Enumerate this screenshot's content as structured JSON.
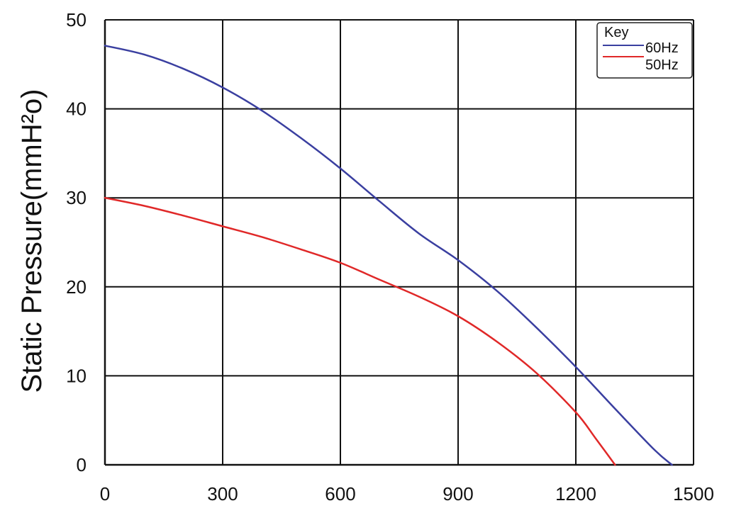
{
  "chart_data": {
    "type": "line",
    "title": "",
    "xlabel": "",
    "ylabel": "Static Pressure(mmH²o)",
    "xlim": [
      0,
      1500
    ],
    "ylim": [
      0,
      50
    ],
    "x_ticks": [
      "0",
      "300",
      "600",
      "900",
      "1200",
      "1500"
    ],
    "y_ticks": [
      "0",
      "10",
      "20",
      "30",
      "40",
      "50"
    ],
    "grid": true,
    "legend": {
      "title": "Key",
      "placement": "top-right",
      "entries": [
        "60Hz",
        "50Hz"
      ]
    },
    "series": [
      {
        "name": "60Hz",
        "color": "#3a3fa0",
        "x": [
          0,
          100,
          200,
          300,
          400,
          500,
          600,
          700,
          800,
          900,
          1000,
          1100,
          1200,
          1300,
          1400,
          1445
        ],
        "y": [
          47.1,
          46.1,
          44.5,
          42.4,
          39.8,
          36.7,
          33.3,
          29.6,
          26.0,
          23.0,
          19.5,
          15.4,
          11.0,
          6.3,
          1.7,
          0
        ]
      },
      {
        "name": "50Hz",
        "color": "#e02828",
        "x": [
          0,
          100,
          200,
          300,
          400,
          500,
          600,
          700,
          800,
          900,
          1000,
          1100,
          1200,
          1250,
          1300
        ],
        "y": [
          30.0,
          29.1,
          28.0,
          26.8,
          25.6,
          24.2,
          22.7,
          20.8,
          18.9,
          16.7,
          13.8,
          10.3,
          5.9,
          3.0,
          0
        ]
      }
    ]
  }
}
